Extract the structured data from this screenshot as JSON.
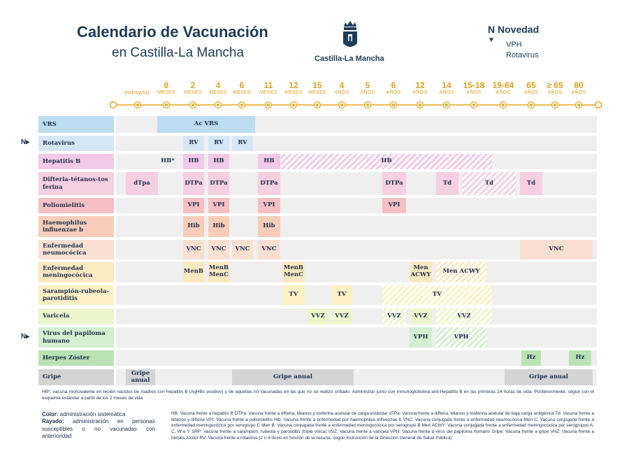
{
  "header": {
    "title_line1": "Calendario de Vacunación",
    "title_line2": "en Castilla-La Mancha",
    "logo_text": "Castilla-La Mancha",
    "novedad": {
      "marker": "N",
      "title": "Novedad",
      "arrow": "▼",
      "items": [
        "VPH",
        "Rotavirus"
      ]
    }
  },
  "ages": [
    {
      "n": "",
      "u": "PRENATAL"
    },
    {
      "n": "0",
      "u": "MESES"
    },
    {
      "n": "2",
      "u": "MESES"
    },
    {
      "n": "4",
      "u": "MESES"
    },
    {
      "n": "6",
      "u": "MESES"
    },
    {
      "n": "11",
      "u": "MESES"
    },
    {
      "n": "12",
      "u": "MESES"
    },
    {
      "n": "15",
      "u": "MESES"
    },
    {
      "n": "4",
      "u": "AÑOS"
    },
    {
      "n": "5",
      "u": "AÑOS"
    },
    {
      "n": "6",
      "u": "AÑOS"
    },
    {
      "n": "12",
      "u": "AÑOS"
    },
    {
      "n": "14",
      "u": "AÑOS"
    },
    {
      "n": "15-18",
      "u": "AÑOS"
    },
    {
      "n": "19-64",
      "u": "AÑOS"
    },
    {
      "n": "65",
      "u": "AÑOS"
    },
    {
      "n": "≥ 65",
      "u": "AÑOS"
    },
    {
      "n": "80",
      "u": "AÑOS"
    }
  ],
  "colors": {
    "timeline": "#e8a820",
    "row_bg": "#efefef",
    "vrs": "#bcdcf1",
    "rotavirus": "#d7e6f5",
    "hepatitis_b": "#f2c9e6",
    "difteria": "#f6cfe0",
    "polio": "#f6bfc3",
    "haemophilus": "#f7cdb9",
    "neumococo": "#fbe0d1",
    "meningococo": "#fbe9c2",
    "srp": "#fbf1c4",
    "varicela": "#edf5cc",
    "vph": "#d2efcf",
    "herpes": "#b9e3b2",
    "gripe": "#d4d4d4"
  },
  "rows": [
    {
      "label": "VRS",
      "novedad": false,
      "cells": [
        {
          "text": "Ac VRS",
          "hatch": false
        }
      ]
    },
    {
      "label": "Rotavirus",
      "novedad": true,
      "cells": [
        {
          "text": "RV"
        },
        {
          "text": "RV"
        },
        {
          "text": "RV"
        }
      ]
    },
    {
      "label": "Hepatitis B",
      "novedad": false,
      "cells": [
        {
          "text": "HB*"
        },
        {
          "text": "HB"
        },
        {
          "text": "HB"
        },
        {
          "text": "HB"
        },
        {
          "text": "HB",
          "hatch": true
        }
      ]
    },
    {
      "label": "Difteria-tétanos-tos ferina",
      "novedad": false,
      "cells": [
        {
          "text": "dTpa"
        },
        {
          "text": "DTPa"
        },
        {
          "text": "DTPa"
        },
        {
          "text": "DTPa"
        },
        {
          "text": "DTPa"
        },
        {
          "text": "Td"
        },
        {
          "text": "Td",
          "hatch": true
        },
        {
          "text": "Td"
        }
      ]
    },
    {
      "label": "Poliomielitis",
      "novedad": false,
      "cells": [
        {
          "text": "VPI"
        },
        {
          "text": "VPI"
        },
        {
          "text": "VPI"
        },
        {
          "text": "VPI"
        }
      ]
    },
    {
      "label": "Haemophilus influenzae b",
      "novedad": false,
      "cells": [
        {
          "text": "Hib"
        },
        {
          "text": "Hib"
        },
        {
          "text": "Hib"
        }
      ]
    },
    {
      "label": "Enfermedad neumocócica",
      "novedad": false,
      "cells": [
        {
          "text": "VNC"
        },
        {
          "text": "VNC"
        },
        {
          "text": "VNC"
        },
        {
          "text": "VNC"
        },
        {
          "text": "VNC"
        }
      ]
    },
    {
      "label": "Enfermedad meningocócica",
      "novedad": false,
      "cells": [
        {
          "text": "MenB"
        },
        {
          "text": "MenB MenC"
        },
        {
          "text": "MenB MenC"
        },
        {
          "text": "Men ACWY"
        },
        {
          "text": "Men ACWY",
          "hatch": true
        }
      ]
    },
    {
      "label": "Sarampión-rubeola-parotiditis",
      "novedad": false,
      "cells": [
        {
          "text": "TV"
        },
        {
          "text": "TV"
        },
        {
          "text": "TV",
          "hatch": true
        }
      ]
    },
    {
      "label": "Varicela",
      "novedad": false,
      "cells": [
        {
          "text": "VVZ"
        },
        {
          "text": "VVZ"
        },
        {
          "text": "VVZ",
          "hatch": true
        },
        {
          "text": "VVZ"
        },
        {
          "text": "VVZ",
          "hatch": true
        }
      ]
    },
    {
      "label": "Virus del papiloma humano",
      "novedad": true,
      "cells": [
        {
          "text": "VPH"
        },
        {
          "text": "VPH",
          "hatch": true
        }
      ]
    },
    {
      "label": "Herpes Zóster",
      "novedad": false,
      "cells": [
        {
          "text": "Hz"
        },
        {
          "text": "Hz"
        }
      ]
    },
    {
      "label": "Gripe",
      "novedad": false,
      "cells": [
        {
          "text": "Gripe anual"
        },
        {
          "text": "Gripe anual"
        },
        {
          "text": "Gripe anual"
        }
      ]
    }
  ],
  "footnote_hb": "HB*: vacuna monovalente en recién nacidos de madres con hepatitis B (AgHBs positivo) y de aquellas no vacunadas en las que no se realizó cribado. Administrar junto con inmunoglobulina anti-Hepatitis B en las primeras 24 horas de vida. Posteriormente, seguir con el esquema estándar a partir de los 2 meses de vida.",
  "legend": {
    "color_title": "Color:",
    "color_text": "administración sistemática",
    "rayado_title": "Rayado:",
    "rayado_text": "administración en personas susceptibles o no vacunadas con anterioridad"
  },
  "abbreviations": "HB: Vacuna frente a hepatitis B DTPa: Vacuna frente a difteria, tétanos y tosferina acelular de carga estándar dTPa: Vacuna frente a difteria, tétanos y tosferina acelular de baja carga antigénica Td: Vacuna frente a tétanos y difteria VPI: Vacuna frente a poliomielitis Hib: Vacuna frente a enfermedad por haemophilus influenzae b VNC: Vacuna conjugada frente a enfermedad neumocócica Men C: Vacuna conjugada frente a enfermedad meningocócica por serogrupo C Men B: Vacuna conjugada frente a enfermedad meningocócica por serogrupo B Men ACWY: Vacuna conjugada frente a enfermedad meningocócica por serogrupos A, C, W e Y SRP: Vacuna frente a sarampión, rubeola y parotiditis (triple vírica) VVZ: Vacuna frente a varicela VPH: Vacuna frente a virus del papiloma humano Gripe: Vacuna frente a gripe VHZ: Vacuna frente a herpes zóster RV: Vacuna frente a rotavirus (2 o 3 dosis en función de la vacuna, según instrucción de la Dirección General de Salud Pública)."
}
